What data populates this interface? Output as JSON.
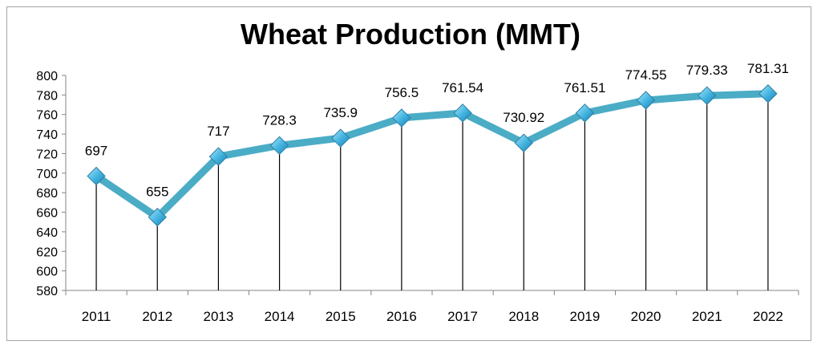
{
  "chart_data": {
    "type": "line",
    "title": "Wheat Production (MMT)",
    "xlabel": "",
    "ylabel": "",
    "categories": [
      "2011",
      "2012",
      "2013",
      "2014",
      "2015",
      "2016",
      "2017",
      "2018",
      "2019",
      "2020",
      "2021",
      "2022"
    ],
    "series": [
      {
        "values": [
          697,
          655,
          717,
          728.3,
          735.9,
          756.5,
          761.54,
          730.92,
          761.51,
          774.55,
          779.33,
          781.31
        ],
        "data_labels": [
          "697",
          "655",
          "717",
          "728.3",
          "735.9",
          "756.5",
          "761.54",
          "730.92",
          "761.51",
          "774.55",
          "779.33",
          "781.31"
        ]
      }
    ],
    "ylim": [
      580,
      800
    ],
    "ytick_step": 20,
    "yticks": [
      "580",
      "600",
      "620",
      "640",
      "660",
      "680",
      "700",
      "720",
      "740",
      "760",
      "780",
      "800"
    ],
    "drop_lines": true,
    "marker": "diamond",
    "grid": false,
    "legend": "none",
    "colors": {
      "line": "#4BACC6",
      "marker_fill": "#5DC4EA",
      "marker_edge": "#2E7FA6",
      "drop_line": "#000000",
      "axis": "#868686"
    }
  }
}
